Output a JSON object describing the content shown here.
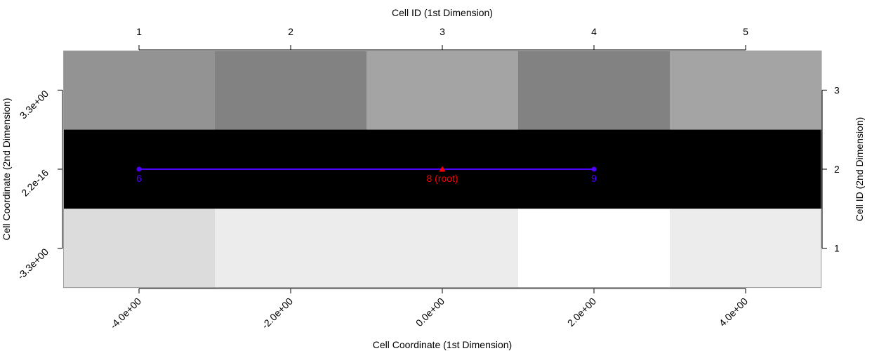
{
  "chart_data": {
    "type": "heatmap",
    "title": "",
    "top_axis_label": "Cell ID (1st Dimension)",
    "bottom_axis_label": "Cell Coordinate (1st Dimension)",
    "left_axis_label": "Cell Coordinate (2nd Dimension)",
    "right_axis_label": "Cell ID (2nd Dimension)",
    "top_ticks": [
      "1",
      "2",
      "3",
      "4",
      "5"
    ],
    "bottom_ticks": [
      "-4.0e+00",
      "-2.0e+00",
      "0.0e+00",
      "2.0e+00",
      "4.0e+00"
    ],
    "left_ticks": [
      "3.3e+00",
      "2.2e-16",
      "-3.3e+00"
    ],
    "right_ticks": [
      "3",
      "2",
      "1"
    ],
    "x_cells": [
      1,
      2,
      3,
      4,
      5
    ],
    "y_cells": [
      3,
      2,
      1
    ],
    "cell_colors": [
      [
        "#939393",
        "#828282",
        "#a4a4a4",
        "#828282",
        "#a4a4a4"
      ],
      [
        "#000000",
        "#000000",
        "#000000",
        "#000000",
        "#000000"
      ],
      [
        "#dcdcdc",
        "#ececec",
        "#ececec",
        "#ffffff",
        "#ececec"
      ]
    ],
    "path": {
      "color": "#5000ff",
      "y_cell": 2,
      "nodes": [
        {
          "x_cell": 1,
          "label": "6",
          "root": false
        },
        {
          "x_cell": 3,
          "label": "8 (root)",
          "root": true
        },
        {
          "x_cell": 4,
          "label": "9",
          "root": false
        }
      ]
    },
    "root_color": "#ff0000",
    "grid": false
  }
}
